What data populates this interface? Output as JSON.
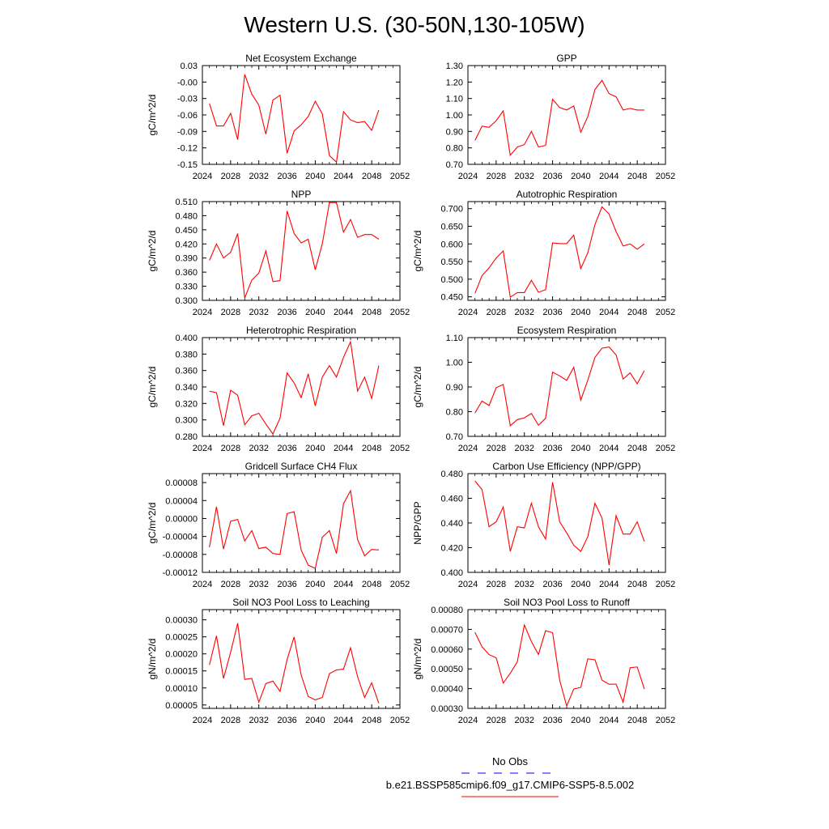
{
  "figure": {
    "title": "Western U.S. (30-50N,130-105W)",
    "legend": {
      "entries": [
        {
          "label": "No Obs",
          "color": "#0000ff",
          "style": "dashed"
        },
        {
          "label": "b.e21.BSSP585cmip6.f09_g17.CMIP6-SSP5-8.5.002",
          "color": "#ff0000",
          "style": "solid"
        }
      ],
      "placement": "bottom-right"
    },
    "line_color": "#ff0000"
  },
  "chart_data": [
    {
      "type": "line",
      "title": "Net Ecosystem Exchange",
      "ylabel": "gC/m^2/d",
      "xlim": [
        2024,
        2052
      ],
      "xticks": [
        "2024",
        "2028",
        "2032",
        "2036",
        "2040",
        "2044",
        "2048",
        "2052"
      ],
      "ylim": [
        -0.15,
        0.03
      ],
      "yticks": [
        "0.03",
        "-0.00",
        "-0.03",
        "-0.06",
        "-0.09",
        "-0.12",
        "-0.15"
      ],
      "x": [
        2025,
        2026,
        2027,
        2028,
        2029,
        2030,
        2031,
        2032,
        2033,
        2034,
        2035,
        2036,
        2037,
        2038,
        2039,
        2040,
        2041,
        2042,
        2043,
        2044,
        2045,
        2046,
        2047,
        2048,
        2049
      ],
      "y": [
        -0.039,
        -0.08,
        -0.08,
        -0.057,
        -0.105,
        0.014,
        -0.022,
        -0.042,
        -0.095,
        -0.033,
        -0.024,
        -0.13,
        -0.089,
        -0.078,
        -0.063,
        -0.035,
        -0.058,
        -0.134,
        -0.146,
        -0.054,
        -0.069,
        -0.074,
        -0.072,
        -0.088,
        -0.051
      ]
    },
    {
      "type": "line",
      "title": "GPP",
      "ylabel": "",
      "xlim": [
        2024,
        2052
      ],
      "xticks": [
        "2024",
        "2028",
        "2032",
        "2036",
        "2040",
        "2044",
        "2048",
        "2052"
      ],
      "ylim": [
        0.7,
        1.3
      ],
      "yticks": [
        "1.30",
        "1.20",
        "1.10",
        "1.00",
        "0.90",
        "0.80",
        "0.70"
      ],
      "x": [
        2025,
        2026,
        2027,
        2028,
        2029,
        2030,
        2031,
        2032,
        2033,
        2034,
        2035,
        2036,
        2037,
        2038,
        2039,
        2040,
        2041,
        2042,
        2043,
        2044,
        2045,
        2046,
        2047,
        2048,
        2049
      ],
      "y": [
        0.845,
        0.932,
        0.925,
        0.965,
        1.025,
        0.755,
        0.805,
        0.82,
        0.9,
        0.805,
        0.815,
        1.095,
        1.045,
        1.03,
        1.055,
        0.895,
        0.99,
        1.155,
        1.21,
        1.13,
        1.11,
        1.03,
        1.04,
        1.03,
        1.03
      ]
    },
    {
      "type": "line",
      "title": "NPP",
      "ylabel": "gC/m^2/d",
      "xlim": [
        2024,
        2052
      ],
      "xticks": [
        "2024",
        "2028",
        "2032",
        "2036",
        "2040",
        "2044",
        "2048",
        "2052"
      ],
      "ylim": [
        0.3,
        0.51
      ],
      "yticks": [
        "0.510",
        "0.480",
        "0.450",
        "0.420",
        "0.390",
        "0.360",
        "0.330",
        "0.300"
      ],
      "x": [
        2025,
        2026,
        2027,
        2028,
        2029,
        2030,
        2031,
        2032,
        2033,
        2034,
        2035,
        2036,
        2037,
        2038,
        2039,
        2040,
        2041,
        2042,
        2043,
        2044,
        2045,
        2046,
        2047,
        2048,
        2049
      ],
      "y": [
        0.385,
        0.42,
        0.39,
        0.402,
        0.442,
        0.305,
        0.343,
        0.358,
        0.405,
        0.34,
        0.342,
        0.49,
        0.442,
        0.422,
        0.43,
        0.365,
        0.42,
        0.508,
        0.508,
        0.445,
        0.472,
        0.434,
        0.44,
        0.44,
        0.43
      ]
    },
    {
      "type": "line",
      "title": "Autotrophic Respiration",
      "ylabel": "gC/m^2/d",
      "xlim": [
        2024,
        2052
      ],
      "xticks": [
        "2024",
        "2028",
        "2032",
        "2036",
        "2040",
        "2044",
        "2048",
        "2052"
      ],
      "ylim": [
        0.44,
        0.72
      ],
      "yticks": [
        "0.700",
        "0.650",
        "0.600",
        "0.550",
        "0.500",
        "0.450"
      ],
      "x": [
        2025,
        2026,
        2027,
        2028,
        2029,
        2030,
        2031,
        2032,
        2033,
        2034,
        2035,
        2036,
        2037,
        2038,
        2039,
        2040,
        2041,
        2042,
        2043,
        2044,
        2045,
        2046,
        2047,
        2048,
        2049
      ],
      "y": [
        0.46,
        0.51,
        0.532,
        0.56,
        0.58,
        0.449,
        0.462,
        0.462,
        0.497,
        0.463,
        0.47,
        0.603,
        0.601,
        0.601,
        0.625,
        0.53,
        0.575,
        0.655,
        0.705,
        0.685,
        0.635,
        0.594,
        0.6,
        0.585,
        0.6
      ]
    },
    {
      "type": "line",
      "title": "Heterotrophic Respiration",
      "ylabel": "gC/m^2/d",
      "xlim": [
        2024,
        2052
      ],
      "xticks": [
        "2024",
        "2028",
        "2032",
        "2036",
        "2040",
        "2044",
        "2048",
        "2052"
      ],
      "ylim": [
        0.28,
        0.4
      ],
      "yticks": [
        "0.400",
        "0.380",
        "0.360",
        "0.340",
        "0.320",
        "0.300",
        "0.280"
      ],
      "x": [
        2025,
        2026,
        2027,
        2028,
        2029,
        2030,
        2031,
        2032,
        2033,
        2034,
        2035,
        2036,
        2037,
        2038,
        2039,
        2040,
        2041,
        2042,
        2043,
        2044,
        2045,
        2046,
        2047,
        2048,
        2049
      ],
      "y": [
        0.335,
        0.333,
        0.293,
        0.336,
        0.33,
        0.294,
        0.305,
        0.308,
        0.295,
        0.283,
        0.302,
        0.357,
        0.345,
        0.327,
        0.356,
        0.317,
        0.352,
        0.366,
        0.352,
        0.376,
        0.395,
        0.335,
        0.352,
        0.326,
        0.366
      ]
    },
    {
      "type": "line",
      "title": "Ecosystem Respiration",
      "ylabel": "gC/m^2/d",
      "xlim": [
        2024,
        2052
      ],
      "xticks": [
        "2024",
        "2028",
        "2032",
        "2036",
        "2040",
        "2044",
        "2048",
        "2052"
      ],
      "ylim": [
        0.7,
        1.1
      ],
      "yticks": [
        "1.10",
        "1.00",
        "0.90",
        "0.80",
        "0.70"
      ],
      "x": [
        2025,
        2026,
        2027,
        2028,
        2029,
        2030,
        2031,
        2032,
        2033,
        2034,
        2035,
        2036,
        2037,
        2038,
        2039,
        2040,
        2041,
        2042,
        2043,
        2044,
        2045,
        2046,
        2047,
        2048,
        2049
      ],
      "y": [
        0.795,
        0.843,
        0.825,
        0.897,
        0.91,
        0.743,
        0.768,
        0.775,
        0.793,
        0.745,
        0.773,
        0.96,
        0.945,
        0.927,
        0.98,
        0.847,
        0.928,
        1.02,
        1.057,
        1.062,
        1.03,
        0.932,
        0.957,
        0.913,
        0.966
      ]
    },
    {
      "type": "line",
      "title": "Gridcell Surface CH4 Flux",
      "ylabel": "gC/m^2/d",
      "xlim": [
        2024,
        2052
      ],
      "xticks": [
        "2024",
        "2028",
        "2032",
        "2036",
        "2040",
        "2044",
        "2048",
        "2052"
      ],
      "ylim": [
        -0.00012,
        0.0001
      ],
      "yticks": [
        "0.00008",
        "0.00004",
        "0.00000",
        "-0.00004",
        "-0.00008",
        "-0.00012"
      ],
      "x": [
        2025,
        2026,
        2027,
        2028,
        2029,
        2030,
        2031,
        2032,
        2033,
        2034,
        2035,
        2036,
        2037,
        2038,
        2039,
        2040,
        2041,
        2042,
        2043,
        2044,
        2045,
        2046,
        2047,
        2048,
        2049
      ],
      "y": [
        -6.4e-05,
        2.6e-05,
        -6.8e-05,
        -6e-06,
        -2e-06,
        -5e-05,
        -2.7e-05,
        -6.7e-05,
        -6.4e-05,
        -7.8e-05,
        -8e-05,
        1.1e-05,
        1.5e-05,
        -7e-05,
        -0.000104,
        -0.000111,
        -4.2e-05,
        -2.7e-05,
        -7.8e-05,
        3.3e-05,
        6.2e-05,
        -4.7e-05,
        -8.3e-05,
        -6.9e-05,
        -7e-05
      ]
    },
    {
      "type": "line",
      "title": "Carbon Use Efficiency (NPP/GPP)",
      "ylabel": "NPP/GPP",
      "xlim": [
        2024,
        2052
      ],
      "xticks": [
        "2024",
        "2028",
        "2032",
        "2036",
        "2040",
        "2044",
        "2048",
        "2052"
      ],
      "ylim": [
        0.4,
        0.48
      ],
      "yticks": [
        "0.480",
        "0.460",
        "0.440",
        "0.420",
        "0.400"
      ],
      "x": [
        2025,
        2026,
        2027,
        2028,
        2029,
        2030,
        2031,
        2032,
        2033,
        2034,
        2035,
        2036,
        2037,
        2038,
        2039,
        2040,
        2041,
        2042,
        2043,
        2044,
        2045,
        2046,
        2047,
        2048,
        2049
      ],
      "y": [
        0.474,
        0.467,
        0.437,
        0.441,
        0.453,
        0.417,
        0.437,
        0.436,
        0.456,
        0.437,
        0.427,
        0.473,
        0.441,
        0.432,
        0.422,
        0.417,
        0.429,
        0.456,
        0.444,
        0.406,
        0.446,
        0.431,
        0.431,
        0.441,
        0.425
      ]
    },
    {
      "type": "line",
      "title": "Soil NO3 Pool Loss to Leaching",
      "ylabel": "gN/m^2/d",
      "xlim": [
        2024,
        2052
      ],
      "xticks": [
        "2024",
        "2028",
        "2032",
        "2036",
        "2040",
        "2044",
        "2048",
        "2052"
      ],
      "ylim": [
        4e-05,
        0.00033
      ],
      "yticks": [
        "0.00030",
        "0.00025",
        "0.00020",
        "0.00015",
        "0.00010",
        "0.00005"
      ],
      "x": [
        2025,
        2026,
        2027,
        2028,
        2029,
        2030,
        2031,
        2032,
        2033,
        2034,
        2035,
        2036,
        2037,
        2038,
        2039,
        2040,
        2041,
        2042,
        2043,
        2044,
        2045,
        2046,
        2047,
        2048,
        2049
      ],
      "y": [
        0.000168,
        0.000253,
        0.000128,
        0.000205,
        0.00029,
        0.000125,
        0.000128,
        5.8e-05,
        0.000113,
        0.00012,
        9e-05,
        0.000183,
        0.00025,
        0.000138,
        7.5e-05,
        6.5e-05,
        7.2e-05,
        0.000142,
        0.000153,
        0.000155,
        0.000218,
        0.000133,
        7.2e-05,
        0.000115,
        5.5e-05
      ]
    },
    {
      "type": "line",
      "title": "Soil NO3 Pool Loss to Runoff",
      "ylabel": "gN/m^2/d",
      "xlim": [
        2024,
        2052
      ],
      "xticks": [
        "2024",
        "2028",
        "2032",
        "2036",
        "2040",
        "2044",
        "2048",
        "2052"
      ],
      "ylim": [
        0.0003,
        0.0008
      ],
      "yticks": [
        "0.00080",
        "0.00070",
        "0.00060",
        "0.00050",
        "0.00040",
        "0.00030"
      ],
      "x": [
        2025,
        2026,
        2027,
        2028,
        2029,
        2030,
        2031,
        2032,
        2033,
        2034,
        2035,
        2036,
        2037,
        2038,
        2039,
        2040,
        2041,
        2042,
        2043,
        2044,
        2045,
        2046,
        2047,
        2048,
        2049
      ],
      "y": [
        0.000685,
        0.000612,
        0.000572,
        0.000556,
        0.000428,
        0.000478,
        0.000536,
        0.000722,
        0.000638,
        0.000573,
        0.000693,
        0.000683,
        0.000443,
        0.000312,
        0.000398,
        0.000406,
        0.000551,
        0.000546,
        0.000443,
        0.000422,
        0.000423,
        0.000331,
        0.000506,
        0.00051,
        0.000398
      ]
    }
  ]
}
